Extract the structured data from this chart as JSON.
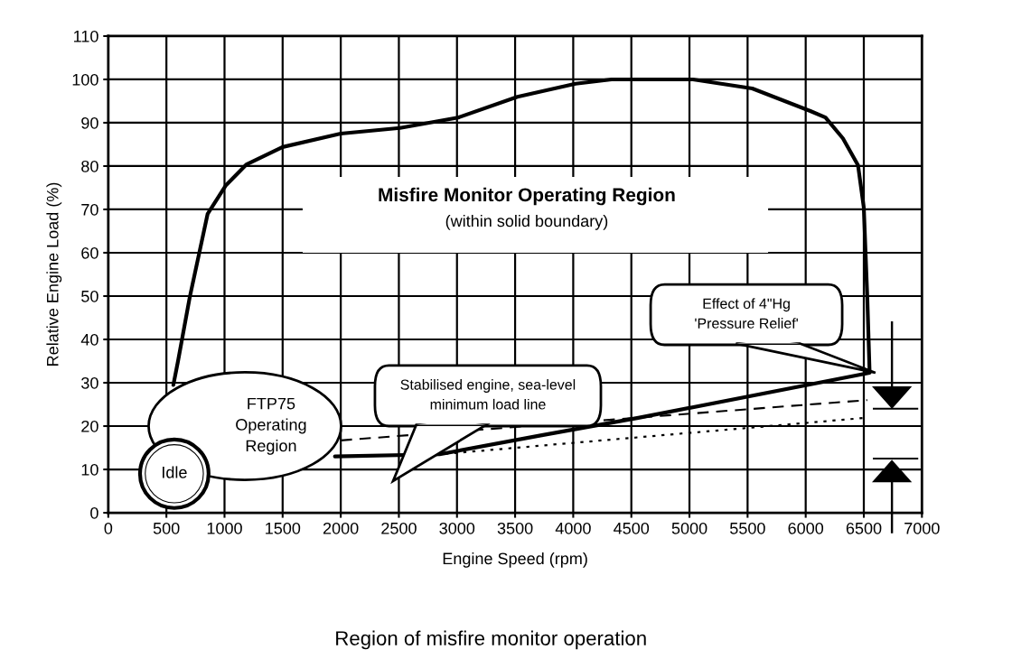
{
  "chart_data": {
    "type": "line",
    "title": "Region of misfire monitor operation",
    "xlabel": "Engine Speed (rpm)",
    "ylabel": "Relative Engine Load (%)",
    "series": [
      {
        "color": "#000000",
        "line_style": "solid",
        "x": [
          560,
          600,
          700,
          855,
          1010,
          1190,
          1500,
          2000,
          2510,
          3010,
          3520,
          4020,
          4330,
          5030,
          5540,
          6040,
          6170,
          6320,
          6450,
          6500,
          6530,
          6550,
          4560,
          3730,
          2850,
          1950
        ],
        "values": [
          29.5,
          35,
          49.6,
          69,
          75.5,
          80.4,
          84.4,
          87.5,
          88.8,
          91.2,
          96,
          99,
          100,
          100,
          97.9,
          92.7,
          91.2,
          86.4,
          80.2,
          70.4,
          49.6,
          32.3,
          21.9,
          17.9,
          13.5,
          13
        ]
      },
      {
        "color": "#000000",
        "line_style": "dashed",
        "x": [
          2000,
          6530
        ],
        "values": [
          16.7,
          26
        ]
      },
      {
        "color": "#000000",
        "line_style": "dotted",
        "x": [
          2900,
          6510
        ],
        "values": [
          13.6,
          21.9
        ]
      }
    ],
    "xlim": [
      0,
      7000
    ],
    "ylim": [
      0,
      110
    ],
    "xticks": [
      0,
      500,
      1000,
      1500,
      2000,
      2500,
      3000,
      3500,
      4000,
      4500,
      5000,
      5500,
      6000,
      6500,
      7000
    ],
    "yticks": [
      0,
      10,
      20,
      30,
      40,
      50,
      60,
      70,
      80,
      90,
      100,
      110
    ],
    "grid": true,
    "marker": "none",
    "annotations": [
      "Misfire Monitor Operating Region",
      "(within solid boundary)",
      "FTP75\nOperating\nRegion",
      "Idle",
      "Stabilised engine, sea-level\nminimum load line",
      "Effect of 4\"Hg\n'Pressure Relief'"
    ]
  }
}
